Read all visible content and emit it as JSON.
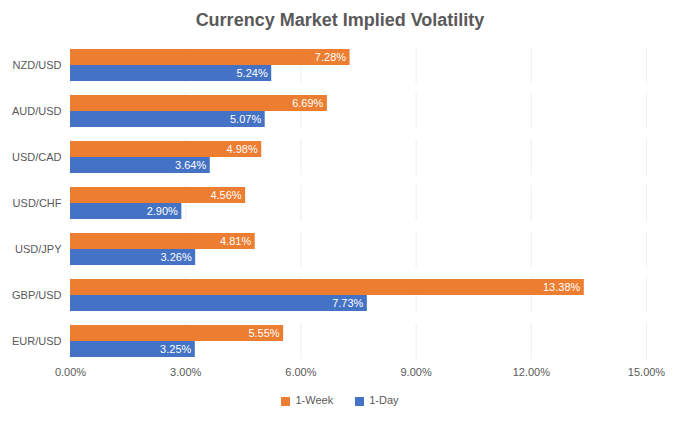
{
  "chart_data": {
    "type": "bar",
    "orientation": "horizontal",
    "title": "Currency Market Implied Volatility",
    "categories": [
      "NZD/USD",
      "AUD/USD",
      "USD/CAD",
      "USD/CHF",
      "USD/JPY",
      "GBP/USD",
      "EUR/USD"
    ],
    "series": [
      {
        "name": "1-Week",
        "color": "#ED7D31",
        "values": [
          7.28,
          6.69,
          4.98,
          4.56,
          4.81,
          13.38,
          5.55
        ],
        "value_labels": [
          "7.28%",
          "6.69%",
          "4.98%",
          "4.56%",
          "4.81%",
          "13.38%",
          "5.55%"
        ]
      },
      {
        "name": "1-Day",
        "color": "#4472C4",
        "values": [
          5.24,
          5.07,
          3.64,
          2.9,
          3.26,
          7.73,
          3.25
        ],
        "value_labels": [
          "5.24%",
          "5.07%",
          "3.64%",
          "2.90%",
          "3.26%",
          "7.73%",
          "3.25%"
        ]
      }
    ],
    "xlim": [
      0,
      15
    ],
    "xticks": [
      {
        "value": 0,
        "label": "0.00%"
      },
      {
        "value": 3,
        "label": "3.00%"
      },
      {
        "value": 6,
        "label": "6.00%"
      },
      {
        "value": 9,
        "label": "9.00%"
      },
      {
        "value": 12,
        "label": "12.00%"
      },
      {
        "value": 15,
        "label": "15.00%"
      }
    ],
    "grid": true,
    "legend": "bottom",
    "data_labels": true
  }
}
